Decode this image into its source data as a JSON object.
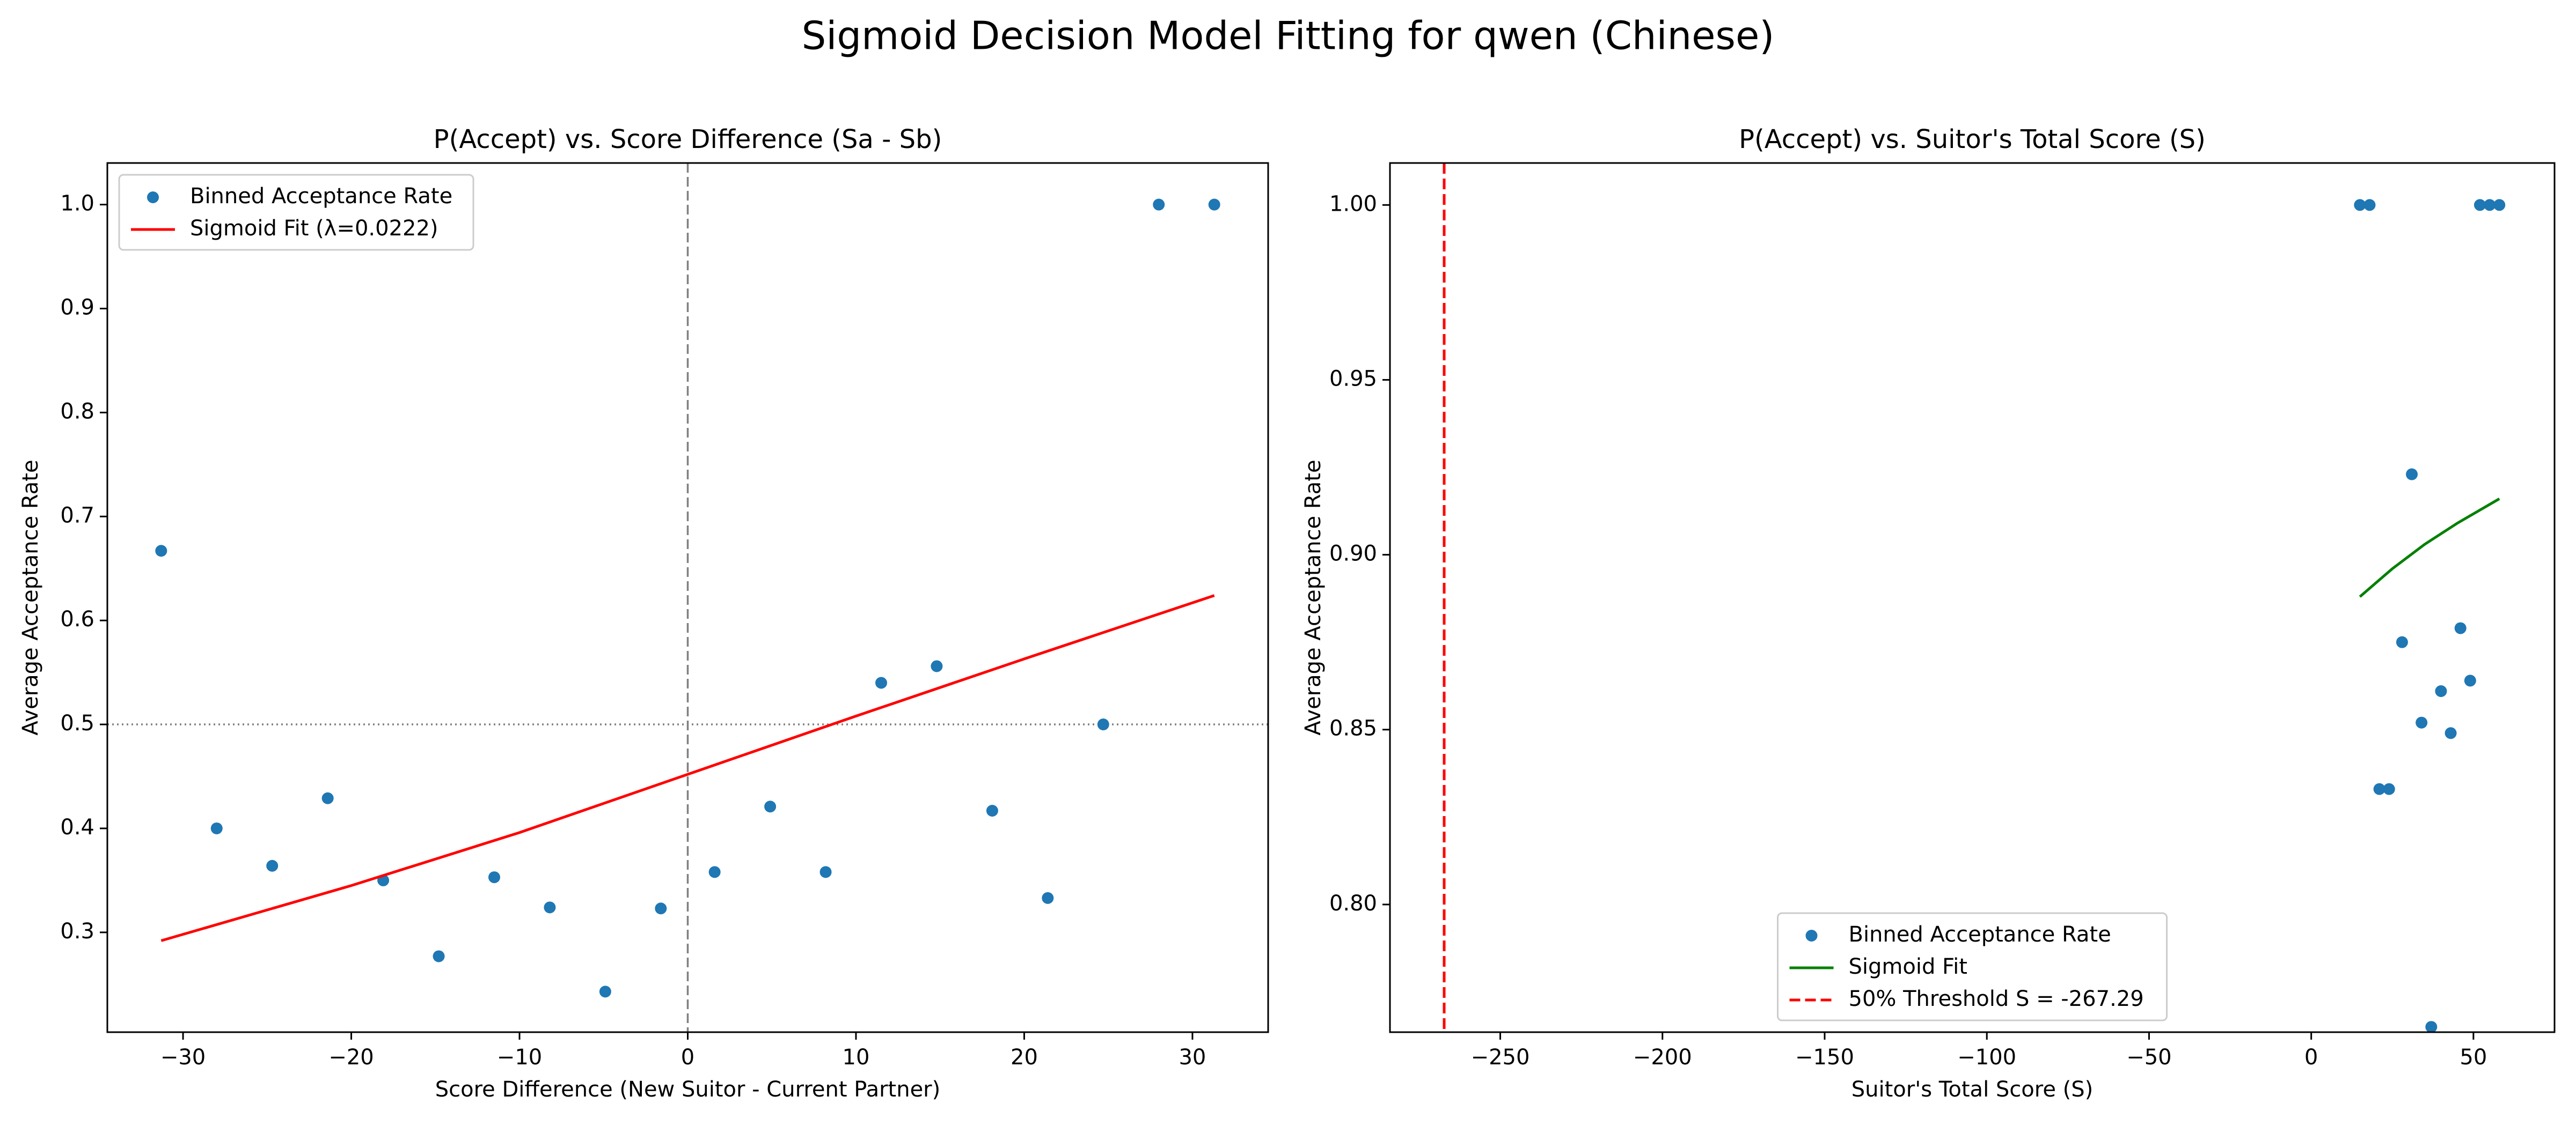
{
  "figure": {
    "suptitle": "Sigmoid Decision Model Fitting for qwen (Chinese)"
  },
  "chart_data": [
    {
      "type": "scatter",
      "title": "P(Accept) vs. Score Difference (Sa - Sb)",
      "xlabel": "Score Difference (New Suitor - Current Partner)",
      "ylabel": "Average Acceptance Rate",
      "xlim": [
        -34.5,
        34.5
      ],
      "ylim": [
        0.204,
        1.04
      ],
      "xticks": [
        -30,
        -20,
        -10,
        0,
        10,
        20,
        30
      ],
      "yticks": [
        0.3,
        0.4,
        0.5,
        0.6,
        0.7,
        0.8,
        0.9,
        1.0
      ],
      "grid": false,
      "legend_position": "upper left",
      "series": [
        {
          "name": "Binned Acceptance Rate",
          "kind": "scatter",
          "color": "#1f77b4",
          "x": [
            -31.3,
            -28.0,
            -24.7,
            -21.4,
            -18.1,
            -14.8,
            -11.5,
            -8.2,
            -4.9,
            -1.6,
            1.6,
            4.9,
            8.2,
            11.5,
            14.8,
            18.1,
            21.4,
            24.7,
            28.0,
            31.3
          ],
          "y": [
            0.667,
            0.4,
            0.364,
            0.429,
            0.35,
            0.277,
            0.353,
            0.324,
            0.243,
            0.323,
            0.358,
            0.421,
            0.358,
            0.54,
            0.556,
            0.417,
            0.333,
            0.5,
            1.0,
            1.0
          ]
        },
        {
          "name": "Sigmoid Fit (λ=0.0222)",
          "kind": "line",
          "color": "#ff0000",
          "x": [
            -31.3,
            -20,
            -10,
            0,
            10,
            20,
            31.3
          ],
          "y": [
            0.292,
            0.345,
            0.396,
            0.452,
            0.508,
            0.563,
            0.624
          ]
        }
      ],
      "reference_lines": [
        {
          "orientation": "vertical",
          "value": 0,
          "style": "dashed",
          "color": "#808080"
        },
        {
          "orientation": "horizontal",
          "value": 0.5,
          "style": "dotted",
          "color": "#808080"
        }
      ]
    },
    {
      "type": "scatter",
      "title": "P(Accept) vs. Suitor's Total Score (S)",
      "xlabel": "Suitor's Total Score (S)",
      "ylabel": "Average Acceptance Rate",
      "xlim": [
        -284,
        75
      ],
      "ylim": [
        0.7635,
        1.012
      ],
      "xticks": [
        -250,
        -200,
        -150,
        -100,
        -50,
        0,
        50
      ],
      "yticks": [
        0.8,
        0.85,
        0.9,
        0.95,
        1.0
      ],
      "tick_labels_y": [
        "0.80",
        "0.85",
        "0.90",
        "0.95",
        "1.00"
      ],
      "grid": false,
      "legend_position": "lower center",
      "series": [
        {
          "name": "Binned Acceptance Rate",
          "kind": "scatter",
          "color": "#1f77b4",
          "x": [
            15,
            18,
            21,
            24,
            28,
            31,
            34,
            37,
            40,
            43,
            46,
            49,
            52,
            55,
            58
          ],
          "y": [
            1.0,
            1.0,
            0.833,
            0.833,
            0.875,
            0.923,
            0.852,
            0.765,
            0.861,
            0.849,
            0.879,
            0.864,
            1.0,
            1.0,
            1.0
          ]
        },
        {
          "name": "Sigmoid Fit",
          "kind": "line",
          "color": "#008000",
          "x": [
            15,
            25,
            35,
            45,
            58
          ],
          "y": [
            0.888,
            0.896,
            0.903,
            0.909,
            0.916
          ]
        },
        {
          "name": "50% Threshold S = -267.29",
          "kind": "vline",
          "color": "#ff0000",
          "style": "dashed",
          "x": [
            -267.29
          ]
        }
      ]
    }
  ]
}
